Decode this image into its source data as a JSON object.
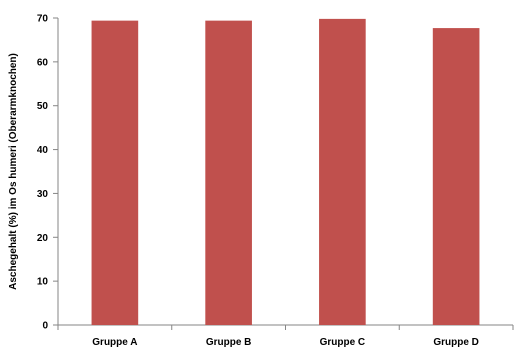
{
  "chart_data": {
    "type": "bar",
    "categories": [
      "Gruppe A",
      "Gruppe B",
      "Gruppe C",
      "Gruppe D"
    ],
    "values": [
      69.4,
      69.4,
      69.8,
      67.7
    ],
    "title": "",
    "xlabel": "",
    "ylabel": "Aschegehalt (%) im Os humeri (Oberarmknochen)",
    "ylim": [
      0,
      70
    ],
    "yticks": [
      0,
      10,
      20,
      30,
      40,
      50,
      60,
      70
    ],
    "grid": false,
    "legend": "none",
    "bar_color": "#C0504D",
    "axis_color": "#868686"
  }
}
